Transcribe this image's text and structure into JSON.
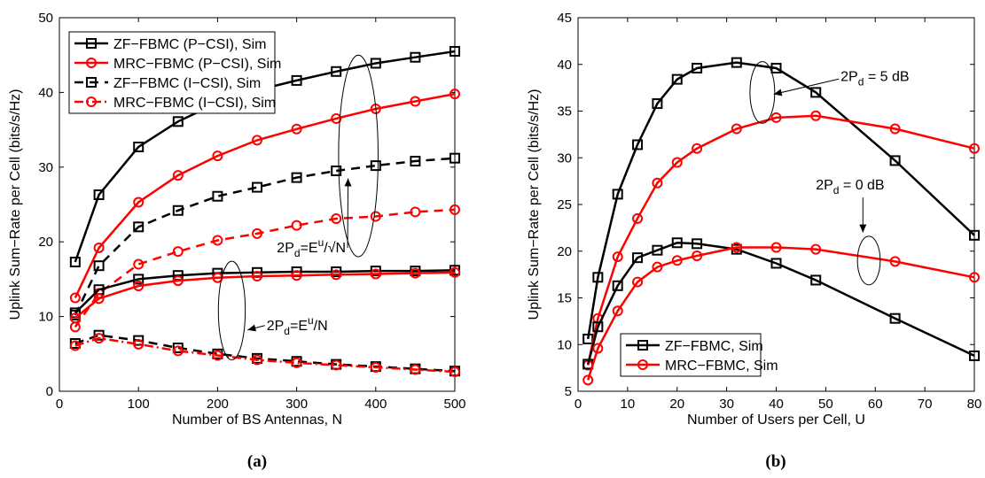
{
  "chart_data": [
    {
      "type": "line",
      "panel_label": "(a)",
      "xlabel": "Number of BS Antennas, N",
      "ylabel": "Uplink Sum−Rate per Cell (bits/s/Hz)",
      "xlim": [
        0,
        500
      ],
      "ylim": [
        0,
        50
      ],
      "xticks": [
        0,
        100,
        200,
        300,
        400,
        500
      ],
      "yticks": [
        0,
        10,
        20,
        30,
        40,
        50
      ],
      "grid": false,
      "legend": "top-left",
      "legend_entries": [
        {
          "label": "ZF−FBMC (P−CSI), Sim",
          "color": "#000000",
          "dash": "solid",
          "marker": "square"
        },
        {
          "label": "MRC−FBMC (P−CSI), Sim",
          "color": "#ff0000",
          "dash": "solid",
          "marker": "circle"
        },
        {
          "label": "ZF−FBMC (I−CSI), Sim",
          "color": "#000000",
          "dash": "dashed",
          "marker": "square"
        },
        {
          "label": "MRC−FBMC (I−CSI), Sim",
          "color": "#ff0000",
          "dash": "dashdot",
          "marker": "circle"
        }
      ],
      "series": [
        {
          "color": "#000000",
          "dash": "solid",
          "marker": "square",
          "x": [
            20,
            50,
            100,
            150,
            200,
            250,
            300,
            350,
            400,
            450,
            500
          ],
          "y": [
            17.3,
            26.3,
            32.7,
            36.1,
            38.6,
            40.3,
            41.6,
            42.8,
            43.9,
            44.7,
            45.5
          ]
        },
        {
          "color": "#ff0000",
          "dash": "solid",
          "marker": "circle",
          "x": [
            20,
            50,
            100,
            150,
            200,
            250,
            300,
            350,
            400,
            450,
            500
          ],
          "y": [
            12.5,
            19.2,
            25.3,
            28.9,
            31.5,
            33.6,
            35.1,
            36.5,
            37.8,
            38.8,
            39.8
          ]
        },
        {
          "color": "#000000",
          "dash": "dashed",
          "marker": "square",
          "x": [
            20,
            50,
            100,
            150,
            200,
            250,
            300,
            350,
            400,
            450,
            500
          ],
          "y": [
            10.2,
            16.8,
            22.0,
            24.2,
            26.1,
            27.3,
            28.6,
            29.5,
            30.2,
            30.8,
            31.2
          ]
        },
        {
          "color": "#ff0000",
          "dash": "dashed",
          "marker": "circle",
          "x": [
            20,
            50,
            100,
            150,
            200,
            250,
            300,
            350,
            400,
            450,
            500
          ],
          "y": [
            8.6,
            13.1,
            17.0,
            18.7,
            20.2,
            21.1,
            22.2,
            23.1,
            23.4,
            24.0,
            24.3
          ]
        },
        {
          "color": "#000000",
          "dash": "solid",
          "marker": "square",
          "x": [
            20,
            50,
            100,
            150,
            200,
            250,
            300,
            350,
            400,
            450,
            500
          ],
          "y": [
            10.5,
            13.6,
            15.0,
            15.5,
            15.8,
            15.9,
            16.0,
            16.0,
            16.1,
            16.1,
            16.2
          ]
        },
        {
          "color": "#ff0000",
          "dash": "solid",
          "marker": "circle",
          "x": [
            20,
            50,
            100,
            150,
            200,
            250,
            300,
            350,
            400,
            450,
            500
          ],
          "y": [
            9.8,
            12.4,
            14.1,
            14.8,
            15.2,
            15.4,
            15.5,
            15.6,
            15.7,
            15.8,
            15.9
          ]
        },
        {
          "color": "#000000",
          "dash": "dashed",
          "marker": "square",
          "x": [
            20,
            50,
            100,
            150,
            200,
            250,
            300,
            350,
            400,
            450,
            500
          ],
          "y": [
            6.4,
            7.5,
            6.8,
            5.8,
            5.0,
            4.4,
            4.0,
            3.6,
            3.3,
            3.0,
            2.7
          ]
        },
        {
          "color": "#ff0000",
          "dash": "dashdot",
          "marker": "circle",
          "x": [
            20,
            50,
            100,
            150,
            200,
            250,
            300,
            350,
            400,
            450,
            500
          ],
          "y": [
            6.1,
            7.1,
            6.3,
            5.4,
            4.8,
            4.2,
            3.8,
            3.5,
            3.2,
            2.9,
            2.6
          ]
        }
      ],
      "annotations": [
        {
          "parts": [
            "2P",
            "d",
            "=E",
            "u",
            "/√N"
          ],
          "x": 275,
          "y": 18.6,
          "arrow_to": [
            365,
            28.5
          ]
        },
        {
          "parts": [
            "2P",
            "d",
            "=E",
            "u",
            "/N"
          ],
          "x": 262,
          "y": 8.2,
          "arrow_to": [
            238,
            8.2
          ]
        }
      ],
      "ellipses": [
        {
          "cx": 378,
          "cy": 31.5,
          "rx": 25,
          "ry": 13.5
        },
        {
          "cx": 218,
          "cy": 10.8,
          "rx": 17,
          "ry": 6.6
        }
      ]
    },
    {
      "type": "line",
      "panel_label": "(b)",
      "xlabel": "Number of Users per Cell, U",
      "ylabel": "Uplink Sum−Rate per Cell (bits/s/Hz)",
      "xlim": [
        0,
        80
      ],
      "ylim": [
        5,
        45
      ],
      "xticks": [
        0,
        10,
        20,
        30,
        40,
        50,
        60,
        70,
        80
      ],
      "yticks": [
        5,
        10,
        15,
        20,
        25,
        30,
        35,
        40,
        45
      ],
      "grid": false,
      "legend": "bottom-left",
      "legend_entries": [
        {
          "label": "ZF−FBMC, Sim",
          "color": "#000000",
          "dash": "solid",
          "marker": "square"
        },
        {
          "label": "MRC−FBMC, Sim",
          "color": "#ff0000",
          "dash": "solid",
          "marker": "circle"
        }
      ],
      "series": [
        {
          "color": "#000000",
          "dash": "solid",
          "marker": "square",
          "x": [
            2,
            4,
            8,
            12,
            16,
            20,
            24,
            32,
            40,
            48,
            64,
            80
          ],
          "y": [
            10.6,
            17.2,
            26.1,
            31.4,
            35.8,
            38.4,
            39.6,
            40.2,
            39.6,
            37.0,
            29.7,
            21.7
          ]
        },
        {
          "color": "#ff0000",
          "dash": "solid",
          "marker": "circle",
          "x": [
            2,
            4,
            8,
            12,
            16,
            20,
            24,
            32,
            40,
            48,
            64,
            80
          ],
          "y": [
            7.8,
            12.8,
            19.4,
            23.5,
            27.3,
            29.5,
            31.0,
            33.1,
            34.3,
            34.5,
            33.1,
            31.0
          ]
        },
        {
          "color": "#000000",
          "dash": "solid",
          "marker": "square",
          "x": [
            2,
            4,
            8,
            12,
            16,
            20,
            24,
            32,
            40,
            48,
            64,
            80
          ],
          "y": [
            7.9,
            11.9,
            16.3,
            19.3,
            20.1,
            20.9,
            20.8,
            20.2,
            18.7,
            16.9,
            12.8,
            8.8
          ]
        },
        {
          "color": "#ff0000",
          "dash": "solid",
          "marker": "circle",
          "x": [
            2,
            4,
            8,
            12,
            16,
            20,
            24,
            32,
            40,
            48,
            64,
            80
          ],
          "y": [
            6.2,
            9.6,
            13.6,
            16.7,
            18.3,
            19.0,
            19.5,
            20.4,
            20.4,
            20.2,
            18.9,
            17.2
          ]
        }
      ],
      "annotations": [
        {
          "parts": [
            "2P",
            "d",
            " = 5 dB"
          ],
          "x": 53,
          "y": 38.2,
          "arrow_to": [
            39.5,
            36.8
          ]
        },
        {
          "parts": [
            "2P",
            "d",
            " = 0 dB"
          ],
          "x": 48,
          "y": 26.6,
          "arrow_to": [
            57.5,
            22.0
          ]
        }
      ],
      "ellipses": [
        {
          "cx": 37.2,
          "cy": 37.0,
          "rx": 2.5,
          "ry": 3.3
        },
        {
          "cx": 58.7,
          "cy": 19.0,
          "rx": 2.3,
          "ry": 2.6
        }
      ]
    }
  ]
}
